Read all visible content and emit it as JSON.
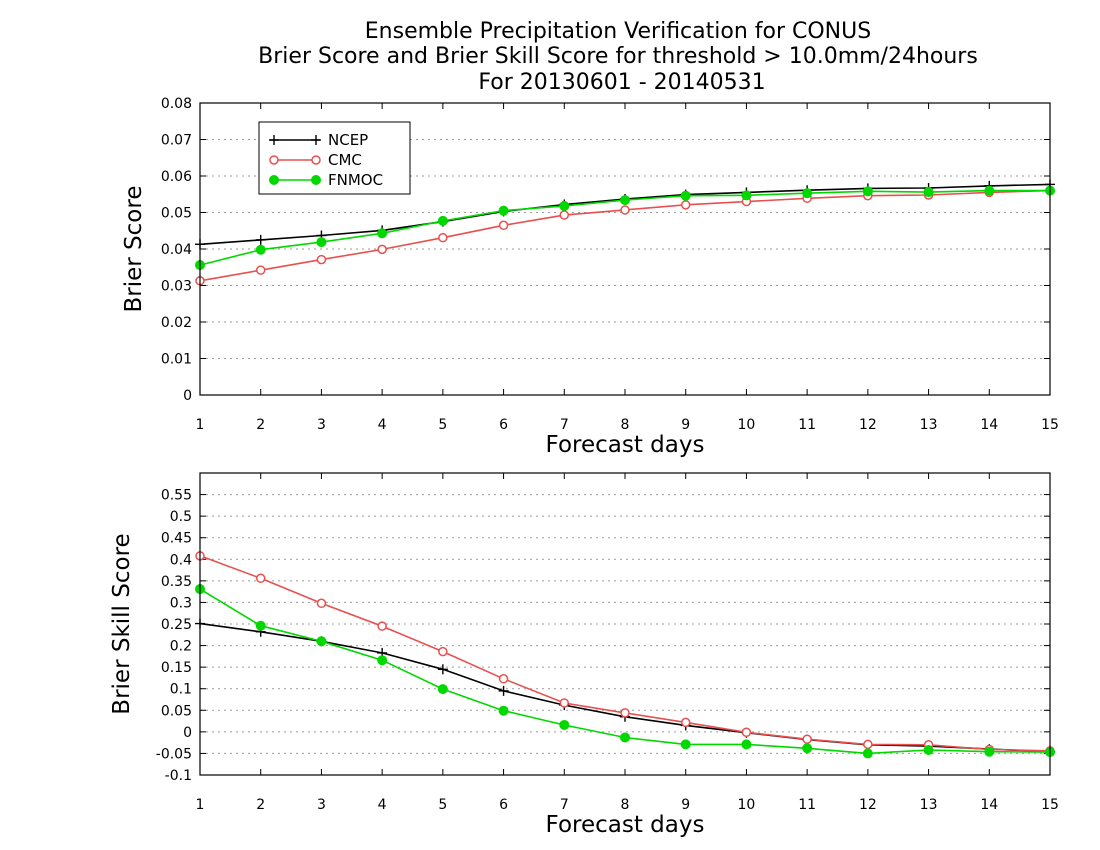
{
  "titles": [
    "Ensemble Precipitation Verification for CONUS",
    "Brier Score and Brier Skill Score for threshold > 10.0mm/24hours",
    "For 20130601 - 20140531"
  ],
  "chart_data": [
    {
      "type": "line",
      "ylabel": "Brier Score",
      "xlabel": "Forecast days",
      "x": [
        1,
        2,
        3,
        4,
        5,
        6,
        7,
        8,
        9,
        10,
        11,
        12,
        13,
        14,
        15
      ],
      "xlim": [
        1,
        15
      ],
      "ylim": [
        0,
        0.08
      ],
      "yticks": [
        0,
        0.01,
        0.02,
        0.03,
        0.04,
        0.05,
        0.06,
        0.07,
        0.08
      ],
      "ytick_labels": [
        "0",
        "0.01",
        "0.02",
        "0.03",
        "0.04",
        "0.05",
        "0.06",
        "0.07",
        "0.08"
      ],
      "grid": "horizontal dotted",
      "legend": "top-left",
      "series": [
        {
          "name": "NCEP",
          "marker": "plus",
          "color": "#000000",
          "values": [
            0.0413,
            0.0425,
            0.0437,
            0.0451,
            0.0475,
            0.0503,
            0.0522,
            0.0537,
            0.0549,
            0.0555,
            0.0561,
            0.0566,
            0.0567,
            0.0573,
            0.0577
          ]
        },
        {
          "name": "CMC",
          "marker": "open-circle",
          "color": "#e8504f",
          "values": [
            0.0313,
            0.0342,
            0.0371,
            0.0399,
            0.0431,
            0.0465,
            0.0493,
            0.0507,
            0.0521,
            0.053,
            0.0539,
            0.0546,
            0.0548,
            0.0555,
            0.056
          ]
        },
        {
          "name": "FNMOC",
          "marker": "filled-circle",
          "color": "#00d800",
          "values": [
            0.0356,
            0.0398,
            0.0419,
            0.0443,
            0.0477,
            0.0505,
            0.0518,
            0.0534,
            0.0546,
            0.0547,
            0.0553,
            0.0558,
            0.0556,
            0.056,
            0.056
          ]
        }
      ]
    },
    {
      "type": "line",
      "ylabel": "Brier Skill Score",
      "xlabel": "Forecast days",
      "x": [
        1,
        2,
        3,
        4,
        5,
        6,
        7,
        8,
        9,
        10,
        11,
        12,
        13,
        14,
        15
      ],
      "xlim": [
        1,
        15
      ],
      "ylim": [
        -0.1,
        0.6
      ],
      "yticks": [
        -0.1,
        -0.05,
        0,
        0.05,
        0.1,
        0.15,
        0.2,
        0.25,
        0.3,
        0.35,
        0.4,
        0.45,
        0.5,
        0.55
      ],
      "ytick_labels": [
        "-0.1",
        "-0.05",
        "0",
        "0.05",
        "0.1",
        "0.15",
        "0.2",
        "0.25",
        "0.3",
        "0.35",
        "0.4",
        "0.45",
        "0.5",
        "0.55"
      ],
      "grid": "horizontal dotted",
      "series": [
        {
          "name": "NCEP",
          "marker": "plus",
          "color": "#000000",
          "values": [
            0.251,
            0.232,
            0.21,
            0.183,
            0.145,
            0.095,
            0.062,
            0.035,
            0.015,
            -0.002,
            -0.018,
            -0.03,
            -0.033,
            -0.04,
            -0.046
          ]
        },
        {
          "name": "CMC",
          "marker": "open-circle",
          "color": "#e8504f",
          "values": [
            0.408,
            0.356,
            0.298,
            0.245,
            0.186,
            0.123,
            0.067,
            0.044,
            0.022,
            -0.001,
            -0.017,
            -0.029,
            -0.03,
            -0.041,
            -0.044
          ]
        },
        {
          "name": "FNMOC",
          "marker": "filled-circle",
          "color": "#00d800",
          "values": [
            0.331,
            0.246,
            0.21,
            0.166,
            0.099,
            0.049,
            0.016,
            -0.013,
            -0.029,
            -0.029,
            -0.038,
            -0.05,
            -0.042,
            -0.046,
            -0.047
          ]
        }
      ]
    }
  ]
}
